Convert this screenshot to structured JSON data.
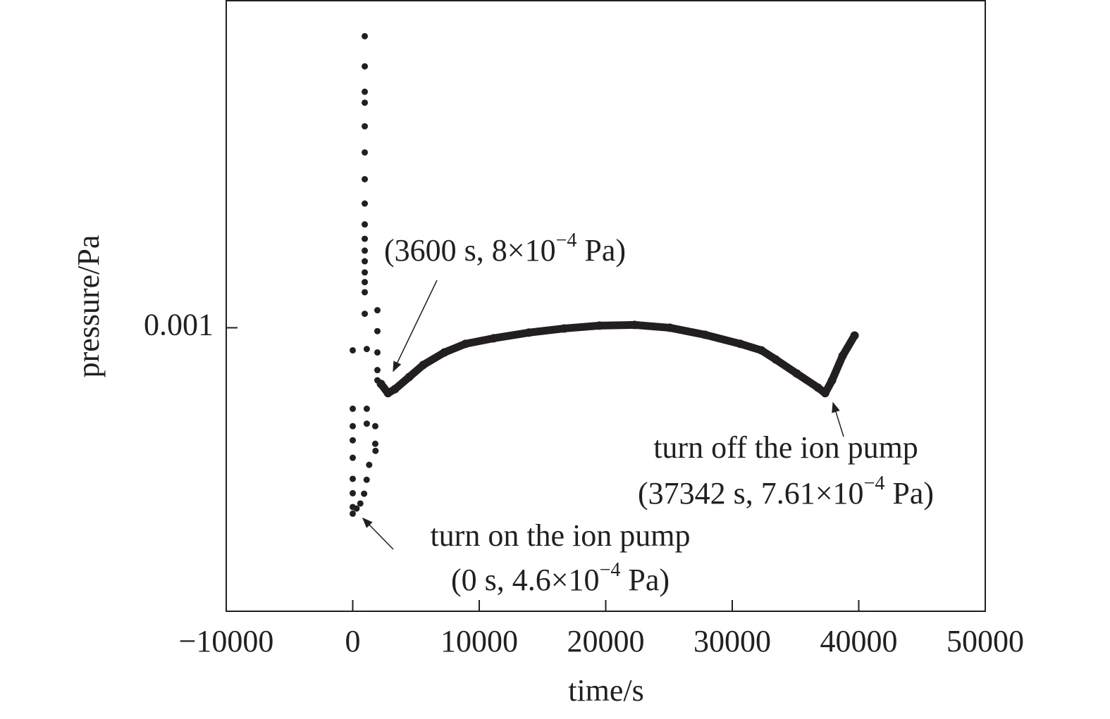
{
  "chart_data": {
    "type": "scatter",
    "x_label": "time/s",
    "y_label": "pressure/Pa",
    "xlim": [
      -10000,
      50000
    ],
    "xticks": [
      {
        "value": -10000,
        "label": "−10000"
      },
      0,
      10000,
      20000,
      30000,
      40000,
      50000
    ],
    "ylim": [
      0.000306,
      0.00392
    ],
    "yticks": [
      0.001
    ],
    "log_y": true,
    "series": [
      {
        "color": "#231f20",
        "style": "dots",
        "x": [
          950,
          950,
          950,
          950,
          950,
          950,
          950,
          950,
          950,
          950,
          950,
          950,
          950,
          950,
          950,
          950,
          0,
          0,
          0,
          0,
          0,
          0,
          0,
          0,
          0,
          300,
          600,
          900,
          1100,
          1300,
          1800,
          1110,
          1110,
          1110,
          1780,
          1780,
          1950,
          1950,
          1950,
          1950,
          1950
        ],
        "values": [
          0.00338,
          0.00298,
          0.00268,
          0.00256,
          0.00232,
          0.00208,
          0.00186,
          0.00168,
          0.00154,
          0.00145,
          0.00138,
          0.00132,
          0.00126,
          0.00121,
          0.00116,
          0.00106,
          0.00091,
          0.000713,
          0.000663,
          0.000625,
          0.000581,
          0.000532,
          0.000501,
          0.000473,
          0.00046,
          0.00047,
          0.00048,
          0.0005,
          0.00053,
          0.000564,
          0.000598,
          0.000915,
          0.000713,
          0.00067,
          0.000663,
          0.000616,
          0.001076,
          0.000986,
          0.000902,
          0.000838,
          0.000803
        ]
      },
      {
        "color": "#231f20",
        "style": "line",
        "x": [
          2230,
          2790,
          3340,
          4460,
          5570,
          7240,
          8910,
          11140,
          13930,
          16710,
          19500,
          22280,
          25070,
          27860,
          30640,
          32310,
          33430,
          35100,
          36770,
          37342,
          37880,
          38720,
          39670
        ],
        "values": [
          0.000791,
          0.000761,
          0.000774,
          0.000814,
          0.000856,
          0.000902,
          0.000935,
          0.000957,
          0.00098,
          0.000997,
          0.001009,
          0.001012,
          0.001,
          0.000971,
          0.000935,
          0.00091,
          0.000876,
          0.000826,
          0.000779,
          0.000761,
          0.000802,
          0.000889,
          0.000968
        ]
      }
    ],
    "annotations": [
      {
        "lines": [
          {
            "text": "(3600 s, 8×10",
            "sup": "−4",
            "tail": " Pa)"
          }
        ]
      },
      {
        "lines": [
          {
            "text": "turn off the ion pump"
          },
          {
            "text": "(37342 s, 7.61×10",
            "sup": "−4",
            "tail": " Pa)"
          }
        ]
      },
      {
        "lines": [
          {
            "text": "turn on the ion pump"
          },
          {
            "text": "(0 s, 4.6×10",
            "sup": "−4",
            "tail": " Pa)"
          }
        ]
      }
    ]
  }
}
